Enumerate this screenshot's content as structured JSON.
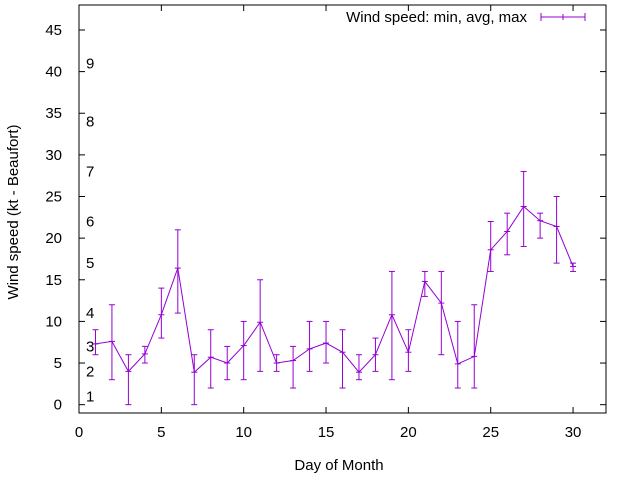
{
  "chart_data": {
    "type": "line",
    "title": "",
    "xlabel": "Day of Month",
    "ylabel": "Wind speed (kt - Beaufort)",
    "xlim": [
      0,
      32
    ],
    "ylim": [
      -1,
      48
    ],
    "xticks": [
      0,
      5,
      10,
      15,
      20,
      25,
      30
    ],
    "yticks": [
      0,
      5,
      10,
      15,
      20,
      25,
      30,
      35,
      40,
      45
    ],
    "grid": false,
    "legend": {
      "label": "Wind speed: min, avg, max",
      "position": "top-right"
    },
    "series": [
      {
        "name": "Wind speed: min, avg, max",
        "color": "#9400d3",
        "x": [
          1,
          2,
          3,
          4,
          5,
          6,
          7,
          8,
          9,
          10,
          11,
          12,
          13,
          14,
          15,
          16,
          17,
          18,
          19,
          20,
          21,
          22,
          23,
          24,
          25,
          26,
          27,
          28,
          29,
          30
        ],
        "avg": [
          7.3,
          7.6,
          4.0,
          6.1,
          10.8,
          16.4,
          3.9,
          5.7,
          5.0,
          7.1,
          9.9,
          5.0,
          5.3,
          6.7,
          7.4,
          6.3,
          3.9,
          6.0,
          10.8,
          6.3,
          14.8,
          12.2,
          4.9,
          5.8,
          18.6,
          20.8,
          23.8,
          22.1,
          21.4,
          16.6
        ],
        "min": [
          6,
          3,
          0,
          5,
          8,
          11,
          0,
          2,
          3,
          3,
          4,
          4,
          2,
          4,
          5,
          2,
          3,
          4,
          3,
          4,
          13,
          6,
          2,
          2,
          16,
          18,
          19,
          20,
          17,
          16
        ],
        "max": [
          9,
          12,
          6,
          7,
          14,
          21,
          6,
          9,
          7,
          10,
          15,
          6,
          7,
          10,
          10,
          9,
          6,
          8,
          16,
          9,
          16,
          16,
          10,
          12,
          22,
          23,
          28,
          23,
          25,
          17
        ]
      }
    ],
    "annotations": [
      {
        "text": "1",
        "y": 1
      },
      {
        "text": "2",
        "y": 4
      },
      {
        "text": "3",
        "y": 7
      },
      {
        "text": "4",
        "y": 11
      },
      {
        "text": "5",
        "y": 17
      },
      {
        "text": "6",
        "y": 22
      },
      {
        "text": "7",
        "y": 28
      },
      {
        "text": "8",
        "y": 34
      },
      {
        "text": "9",
        "y": 41
      }
    ]
  }
}
